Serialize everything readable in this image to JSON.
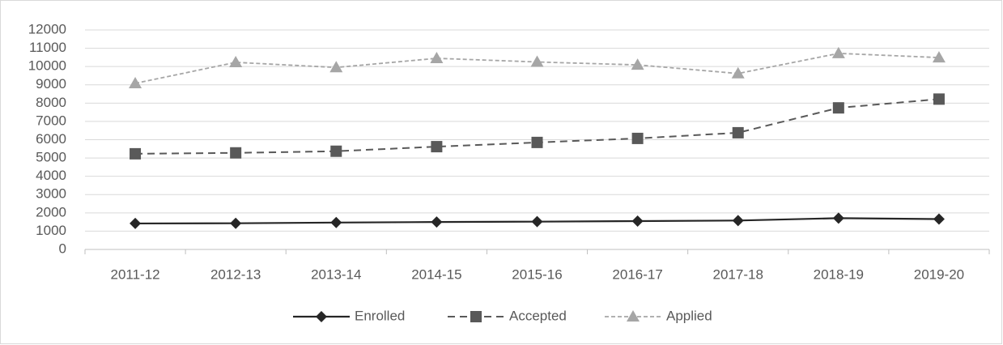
{
  "chart_data": {
    "type": "line",
    "categories": [
      "2011-12",
      "2012-13",
      "2013-14",
      "2014-15",
      "2015-16",
      "2016-17",
      "2017-18",
      "2018-19",
      "2019-20"
    ],
    "series": [
      {
        "name": "Enrolled",
        "color": "#262626",
        "dash": "solid",
        "marker": "diamond",
        "values": [
          1420,
          1430,
          1470,
          1500,
          1520,
          1550,
          1580,
          1710,
          1660
        ]
      },
      {
        "name": "Accepted",
        "color": "#595959",
        "dash": "dashed",
        "marker": "square",
        "values": [
          5230,
          5280,
          5370,
          5620,
          5850,
          6070,
          6380,
          7740,
          8220
        ]
      },
      {
        "name": "Applied",
        "color": "#a6a6a6",
        "dash": "dotted",
        "marker": "triangle",
        "values": [
          9080,
          10230,
          9950,
          10450,
          10250,
          10090,
          9620,
          10720,
          10490
        ]
      }
    ],
    "ylim": [
      0,
      12000
    ],
    "yticks": [
      0,
      1000,
      2000,
      3000,
      4000,
      5000,
      6000,
      7000,
      8000,
      9000,
      10000,
      11000,
      12000
    ],
    "grid": true,
    "legend": "bottom"
  }
}
